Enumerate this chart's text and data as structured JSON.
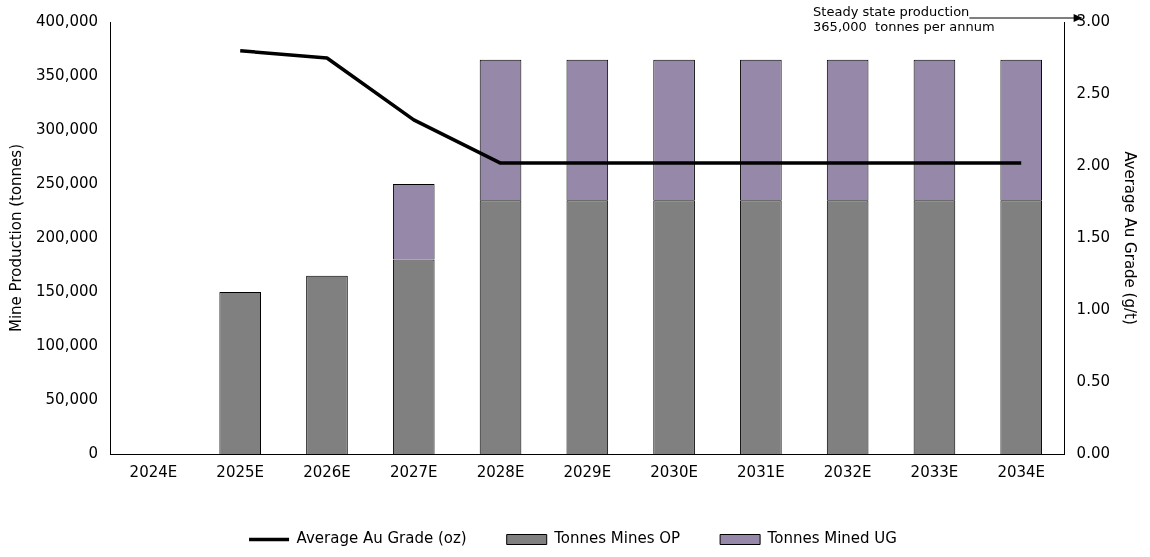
{
  "chart_data": {
    "type": "bar",
    "stacked": true,
    "categories": [
      "2024E",
      "2025E",
      "2026E",
      "2027E",
      "2028E",
      "2029E",
      "2030E",
      "2031E",
      "2032E",
      "2033E",
      "2034E"
    ],
    "series": [
      {
        "name": "Tonnes Mines OP",
        "color": "#808080",
        "values": [
          null,
          150000,
          165000,
          180000,
          235000,
          235000,
          235000,
          235000,
          235000,
          235000,
          235000
        ]
      },
      {
        "name": "Tonnes Mined UG",
        "color": "#9688a8",
        "values": [
          null,
          null,
          null,
          70000,
          130000,
          130000,
          130000,
          130000,
          130000,
          130000,
          130000
        ]
      },
      {
        "name": "Average Au Grade (oz)",
        "type": "line",
        "axis": "y2",
        "color": "#000000",
        "values": [
          null,
          2.8,
          2.75,
          2.32,
          2.02,
          2.02,
          2.02,
          2.02,
          2.02,
          2.02,
          2.02
        ]
      }
    ],
    "ylabel": "Mine Production (tonnes)",
    "y2label": "Average Au Grade (g/t)",
    "ylim": [
      0,
      400000
    ],
    "yticks": [
      {
        "value": 0,
        "label": "0"
      },
      {
        "value": 50000,
        "label": "50,000"
      },
      {
        "value": 100000,
        "label": "100,000"
      },
      {
        "value": 150000,
        "label": "150,000"
      },
      {
        "value": 200000,
        "label": "200,000"
      },
      {
        "value": 250000,
        "label": "250,000"
      },
      {
        "value": 300000,
        "label": "300,000"
      },
      {
        "value": 350000,
        "label": "350,000"
      },
      {
        "value": 400000,
        "label": "400,000"
      }
    ],
    "y2lim": [
      0,
      3
    ],
    "y2ticks": [
      {
        "value": 0,
        "label": "0.00"
      },
      {
        "value": 0.5,
        "label": "0.50"
      },
      {
        "value": 1,
        "label": "1.00"
      },
      {
        "value": 1.5,
        "label": "1.50"
      },
      {
        "value": 2,
        "label": "2.00"
      },
      {
        "value": 2.5,
        "label": "2.50"
      },
      {
        "value": 3,
        "label": "3.00"
      }
    ],
    "annotations": [
      "Steady state production\n365,000  tonnes per annum"
    ],
    "legend": "bottom",
    "grid": false,
    "marker": "none",
    "line_style": "solid"
  }
}
